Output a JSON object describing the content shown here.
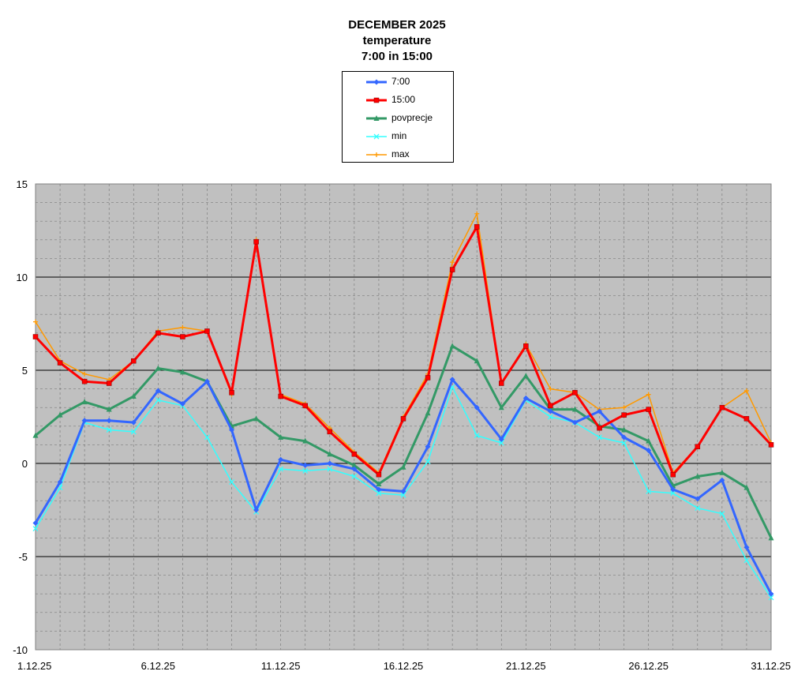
{
  "title": [
    "DECEMBER 2025",
    "temperature",
    "7:00 in 15:00"
  ],
  "chart_data": {
    "type": "line",
    "title": "DECEMBER 2025 temperature 7:00 in 15:00",
    "xlabel": "",
    "ylabel": "",
    "ylim": [
      -10,
      15
    ],
    "yticks": [
      15,
      10,
      5,
      0,
      -5,
      -10
    ],
    "x": [
      "1.12.25",
      "2.12.25",
      "3.12.25",
      "4.12.25",
      "5.12.25",
      "6.12.25",
      "7.12.25",
      "8.12.25",
      "9.12.25",
      "10.12.25",
      "11.12.25",
      "12.12.25",
      "13.12.25",
      "14.12.25",
      "15.12.25",
      "16.12.25",
      "17.12.25",
      "18.12.25",
      "19.12.25",
      "20.12.25",
      "21.12.25",
      "22.12.25",
      "23.12.25",
      "24.12.25",
      "25.12.25",
      "26.12.25",
      "27.12.25",
      "28.12.25",
      "29.12.25",
      "30.12.25",
      "31.12.25"
    ],
    "xtick_labels": [
      "1.12.25",
      "6.12.25",
      "11.12.25",
      "16.12.25",
      "21.12.25",
      "26.12.25",
      "31.12.25"
    ],
    "grid": true,
    "legend_position": "top-center",
    "background": "#c0c0c0",
    "series": [
      {
        "name": "7:00",
        "color": "#3366ff",
        "marker": "diamond",
        "values": [
          -3.2,
          -1.0,
          2.3,
          2.3,
          2.2,
          3.9,
          3.2,
          4.4,
          1.8,
          -2.5,
          0.2,
          -0.1,
          0.0,
          -0.3,
          -1.4,
          -1.5,
          0.9,
          4.5,
          3.0,
          1.3,
          3.5,
          2.8,
          2.2,
          2.8,
          1.4,
          0.7,
          -1.4,
          -1.9,
          -0.9,
          -4.5,
          -7.0
        ]
      },
      {
        "name": "15:00",
        "color": "#ff0000",
        "marker": "square",
        "values": [
          6.8,
          5.4,
          4.4,
          4.3,
          5.5,
          7.0,
          6.8,
          7.1,
          3.8,
          11.9,
          3.6,
          3.1,
          1.7,
          0.5,
          -0.6,
          2.4,
          4.6,
          10.4,
          12.7,
          4.3,
          6.3,
          3.1,
          3.8,
          1.9,
          2.6,
          2.9,
          -0.6,
          0.9,
          3.0,
          2.4,
          1.0
        ]
      },
      {
        "name": "povprecje",
        "color": "#339966",
        "marker": "triangle",
        "values": [
          1.5,
          2.6,
          3.3,
          2.9,
          3.6,
          5.1,
          4.9,
          4.4,
          2.0,
          2.4,
          1.4,
          1.2,
          0.5,
          -0.1,
          -1.1,
          -0.2,
          2.7,
          6.3,
          5.5,
          3.0,
          4.7,
          2.9,
          2.9,
          2.0,
          1.8,
          1.2,
          -1.2,
          -0.7,
          -0.5,
          -1.3,
          -4.0
        ]
      },
      {
        "name": "min",
        "color": "#33ffff",
        "marker": "x",
        "values": [
          -3.5,
          -1.3,
          2.2,
          1.8,
          1.7,
          3.4,
          3.1,
          1.4,
          -1.0,
          -2.6,
          -0.3,
          -0.4,
          -0.3,
          -0.7,
          -1.6,
          -1.7,
          0.1,
          4.1,
          1.5,
          1.1,
          3.4,
          2.5,
          2.2,
          1.4,
          1.1,
          -1.5,
          -1.6,
          -2.4,
          -2.7,
          -5.2,
          -7.2
        ]
      },
      {
        "name": "max",
        "color": "#ff9900",
        "marker": "plus",
        "values": [
          7.6,
          5.5,
          4.8,
          4.5,
          5.5,
          7.1,
          7.3,
          7.1,
          3.7,
          12.0,
          3.7,
          3.2,
          1.9,
          0.6,
          -0.5,
          2.5,
          4.8,
          10.8,
          13.4,
          4.3,
          6.4,
          4.0,
          3.8,
          2.9,
          3.0,
          3.7,
          -0.5,
          0.9,
          3.0,
          3.9,
          1.1
        ]
      }
    ]
  }
}
